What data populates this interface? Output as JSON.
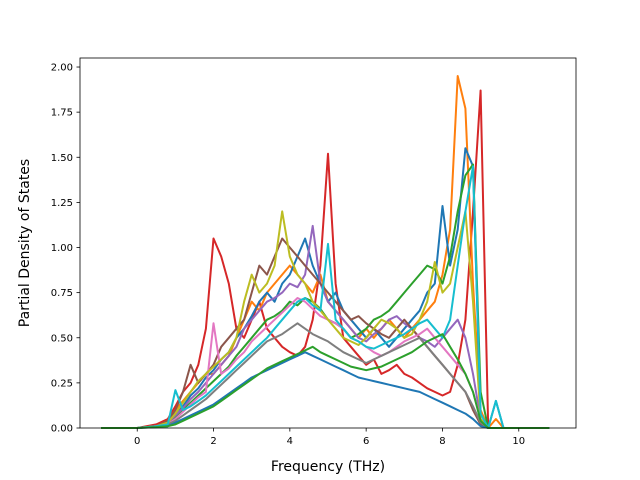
{
  "chart_data": {
    "type": "line",
    "title": "",
    "xlabel": "Frequency (THz)",
    "ylabel": "Partial Density of States",
    "xlim": [
      -1.5,
      11.5
    ],
    "ylim": [
      0,
      2.05
    ],
    "x_ticks": [
      0,
      2,
      4,
      6,
      8,
      10
    ],
    "x_tick_labels": [
      "0",
      "2",
      "4",
      "6",
      "8",
      "10"
    ],
    "y_ticks": [
      0,
      0.25,
      0.5,
      0.75,
      1.0,
      1.25,
      1.5,
      1.75,
      2.0
    ],
    "y_tick_labels": [
      "0.00",
      "0.25",
      "0.50",
      "0.75",
      "1.00",
      "1.25",
      "1.50",
      "1.75",
      "2.00"
    ],
    "grid": false,
    "legend": "none",
    "colors": [
      "#1f77b4",
      "#ff7f0e",
      "#2ca02c",
      "#d62728",
      "#9467bd",
      "#8c564b",
      "#e377c2",
      "#7f7f7f",
      "#bcbd22",
      "#17becf"
    ],
    "x": [
      -0.95,
      -0.5,
      0,
      0.5,
      0.8,
      1.0,
      1.2,
      1.4,
      1.6,
      1.8,
      2.0,
      2.2,
      2.4,
      2.6,
      2.8,
      3.0,
      3.2,
      3.4,
      3.6,
      3.8,
      4.0,
      4.2,
      4.4,
      4.6,
      4.8,
      5.0,
      5.2,
      5.4,
      5.6,
      5.8,
      6.0,
      6.2,
      6.4,
      6.6,
      6.8,
      7.0,
      7.2,
      7.4,
      7.6,
      7.8,
      8.0,
      8.2,
      8.4,
      8.6,
      8.8,
      9.0,
      9.2,
      9.4,
      9.6,
      10.0,
      10.8
    ],
    "series": [
      {
        "color": "#d62728",
        "values": [
          0,
          0,
          0,
          0.02,
          0.05,
          0.12,
          0.2,
          0.25,
          0.35,
          0.55,
          1.05,
          0.95,
          0.8,
          0.55,
          0.5,
          0.6,
          0.7,
          0.55,
          0.5,
          0.45,
          0.42,
          0.4,
          0.45,
          0.6,
          0.9,
          1.52,
          0.8,
          0.5,
          0.45,
          0.4,
          0.35,
          0.38,
          0.3,
          0.32,
          0.35,
          0.3,
          0.28,
          0.25,
          0.22,
          0.2,
          0.18,
          0.2,
          0.35,
          0.6,
          1.2,
          1.87,
          0,
          0,
          0,
          0,
          0
        ]
      },
      {
        "color": "#ff7f0e",
        "values": [
          0,
          0,
          0,
          0.01,
          0.04,
          0.1,
          0.15,
          0.2,
          0.25,
          0.3,
          0.3,
          0.35,
          0.4,
          0.5,
          0.6,
          0.7,
          0.65,
          0.75,
          0.8,
          0.85,
          0.9,
          0.85,
          0.8,
          0.75,
          0.85,
          0.7,
          0.65,
          0.6,
          0.55,
          0.5,
          0.55,
          0.5,
          0.55,
          0.6,
          0.55,
          0.5,
          0.55,
          0.6,
          0.65,
          0.7,
          0.85,
          1.1,
          1.95,
          1.77,
          0.8,
          0.1,
          0,
          0.05,
          0,
          0,
          0
        ]
      },
      {
        "color": "#1f77b4",
        "values": [
          0,
          0,
          0,
          0.01,
          0.03,
          0.08,
          0.12,
          0.18,
          0.22,
          0.28,
          0.32,
          0.38,
          0.42,
          0.5,
          0.55,
          0.62,
          0.7,
          0.75,
          0.7,
          0.8,
          0.85,
          0.95,
          1.05,
          0.9,
          0.8,
          0.7,
          0.75,
          0.65,
          0.6,
          0.55,
          0.5,
          0.55,
          0.5,
          0.45,
          0.5,
          0.55,
          0.6,
          0.65,
          0.75,
          0.8,
          1.23,
          0.9,
          1.1,
          1.55,
          1.45,
          0.05,
          0,
          0.15,
          0,
          0,
          0
        ]
      },
      {
        "color": "#2ca02c",
        "values": [
          0,
          0,
          0,
          0.01,
          0.02,
          0.06,
          0.1,
          0.14,
          0.18,
          0.22,
          0.26,
          0.3,
          0.34,
          0.4,
          0.45,
          0.5,
          0.55,
          0.6,
          0.62,
          0.65,
          0.7,
          0.68,
          0.72,
          0.7,
          0.66,
          0.6,
          0.58,
          0.55,
          0.5,
          0.52,
          0.55,
          0.6,
          0.62,
          0.65,
          0.7,
          0.75,
          0.8,
          0.85,
          0.9,
          0.88,
          0.8,
          0.95,
          1.2,
          1.4,
          1.46,
          0.2,
          0,
          0,
          0,
          0,
          0
        ]
      },
      {
        "color": "#9467bd",
        "values": [
          0,
          0,
          0,
          0.01,
          0.03,
          0.07,
          0.11,
          0.16,
          0.2,
          0.25,
          0.3,
          0.35,
          0.4,
          0.45,
          0.55,
          0.6,
          0.65,
          0.7,
          0.72,
          0.75,
          0.8,
          0.78,
          0.85,
          1.12,
          0.8,
          0.7,
          0.65,
          0.6,
          0.55,
          0.5,
          0.48,
          0.52,
          0.55,
          0.6,
          0.62,
          0.58,
          0.55,
          0.5,
          0.48,
          0.45,
          0.5,
          0.55,
          0.6,
          0.5,
          0.3,
          0.05,
          0,
          0,
          0,
          0,
          0
        ]
      },
      {
        "color": "#8c564b",
        "values": [
          0,
          0,
          0,
          0.01,
          0.04,
          0.1,
          0.2,
          0.35,
          0.25,
          0.3,
          0.35,
          0.45,
          0.5,
          0.55,
          0.6,
          0.75,
          0.9,
          0.85,
          0.95,
          1.05,
          1.0,
          0.95,
          0.9,
          0.85,
          0.8,
          0.75,
          0.7,
          0.65,
          0.6,
          0.62,
          0.58,
          0.55,
          0.52,
          0.5,
          0.55,
          0.6,
          0.55,
          0.5,
          0.45,
          0.4,
          0.35,
          0.3,
          0.25,
          0.2,
          0.1,
          0.02,
          0,
          0,
          0,
          0,
          0
        ]
      },
      {
        "color": "#e377c2",
        "values": [
          0,
          0,
          0,
          0.01,
          0.02,
          0.05,
          0.09,
          0.13,
          0.17,
          0.2,
          0.58,
          0.3,
          0.33,
          0.38,
          0.42,
          0.48,
          0.52,
          0.56,
          0.6,
          0.64,
          0.68,
          0.72,
          0.7,
          0.66,
          0.62,
          0.6,
          0.58,
          0.55,
          0.5,
          0.48,
          0.45,
          0.42,
          0.4,
          0.42,
          0.45,
          0.48,
          0.5,
          0.52,
          0.55,
          0.5,
          0.45,
          0.4,
          0.35,
          0.3,
          0.2,
          0.05,
          0,
          0,
          0,
          0,
          0
        ]
      },
      {
        "color": "#7f7f7f",
        "values": [
          0,
          0,
          0,
          0.01,
          0.02,
          0.04,
          0.07,
          0.1,
          0.13,
          0.16,
          0.2,
          0.24,
          0.28,
          0.32,
          0.36,
          0.4,
          0.44,
          0.48,
          0.5,
          0.52,
          0.55,
          0.58,
          0.55,
          0.52,
          0.5,
          0.48,
          0.45,
          0.42,
          0.4,
          0.38,
          0.36,
          0.38,
          0.4,
          0.42,
          0.44,
          0.46,
          0.48,
          0.5,
          0.45,
          0.4,
          0.35,
          0.3,
          0.25,
          0.2,
          0.12,
          0.03,
          0,
          0,
          0,
          0,
          0
        ]
      },
      {
        "color": "#bcbd22",
        "values": [
          0,
          0,
          0,
          0.01,
          0.03,
          0.08,
          0.14,
          0.2,
          0.26,
          0.3,
          0.34,
          0.38,
          0.42,
          0.5,
          0.7,
          0.85,
          0.75,
          0.8,
          0.9,
          1.2,
          0.95,
          0.85,
          0.8,
          0.7,
          0.65,
          0.6,
          0.55,
          0.5,
          0.48,
          0.46,
          0.5,
          0.55,
          0.6,
          0.58,
          0.55,
          0.5,
          0.52,
          0.6,
          0.7,
          0.92,
          0.75,
          0.8,
          1.0,
          1.2,
          0.7,
          0.05,
          0,
          0,
          0,
          0,
          0
        ]
      },
      {
        "color": "#17becf",
        "values": [
          0,
          0,
          0,
          0.01,
          0.02,
          0.21,
          0.1,
          0.12,
          0.15,
          0.18,
          0.22,
          0.26,
          0.3,
          0.34,
          0.38,
          0.42,
          0.46,
          0.5,
          0.55,
          0.6,
          0.65,
          0.7,
          0.72,
          0.68,
          0.65,
          1.02,
          0.6,
          0.55,
          0.5,
          0.48,
          0.45,
          0.44,
          0.46,
          0.48,
          0.5,
          0.52,
          0.55,
          0.58,
          0.6,
          0.55,
          0.5,
          0.6,
          0.9,
          1.2,
          1.45,
          0.08,
          0,
          0.15,
          0,
          0,
          0
        ]
      },
      {
        "color": "#1f77b4",
        "values": [
          0,
          0,
          0,
          0.005,
          0.01,
          0.03,
          0.05,
          0.07,
          0.09,
          0.11,
          0.13,
          0.16,
          0.19,
          0.22,
          0.25,
          0.28,
          0.3,
          0.32,
          0.34,
          0.36,
          0.38,
          0.4,
          0.42,
          0.4,
          0.38,
          0.36,
          0.34,
          0.32,
          0.3,
          0.28,
          0.27,
          0.26,
          0.25,
          0.24,
          0.23,
          0.22,
          0.21,
          0.2,
          0.18,
          0.16,
          0.14,
          0.12,
          0.1,
          0.08,
          0.05,
          0.01,
          0,
          0,
          0,
          0,
          0
        ]
      },
      {
        "color": "#2ca02c",
        "values": [
          0,
          0,
          0,
          0.005,
          0.01,
          0.02,
          0.04,
          0.06,
          0.08,
          0.1,
          0.12,
          0.15,
          0.18,
          0.21,
          0.24,
          0.27,
          0.3,
          0.33,
          0.35,
          0.37,
          0.39,
          0.41,
          0.43,
          0.45,
          0.42,
          0.4,
          0.38,
          0.36,
          0.34,
          0.33,
          0.32,
          0.33,
          0.34,
          0.36,
          0.38,
          0.4,
          0.42,
          0.45,
          0.48,
          0.5,
          0.52,
          0.45,
          0.38,
          0.3,
          0.2,
          0.04,
          0,
          0,
          0,
          0,
          0
        ]
      }
    ]
  }
}
